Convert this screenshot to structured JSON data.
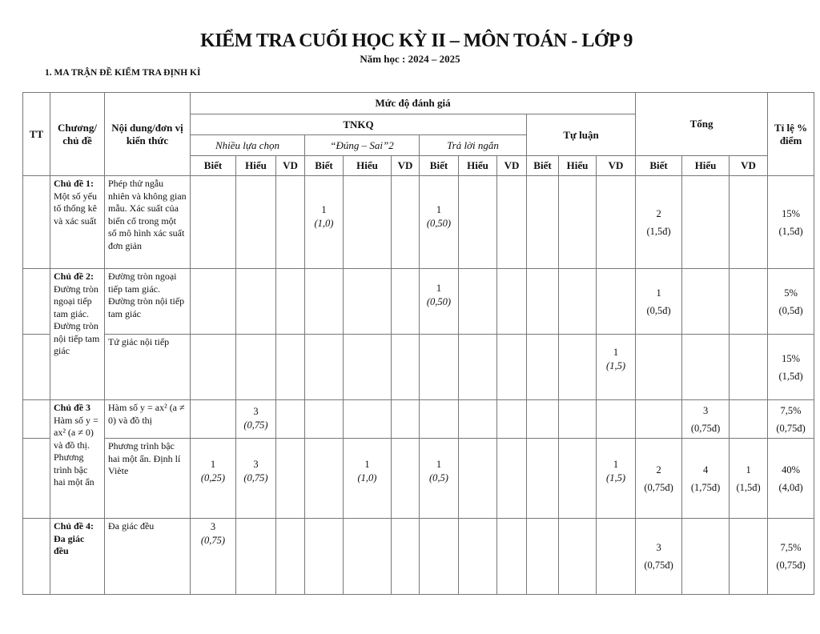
{
  "title": "KIỂM TRA CUỐI HỌC KỲ II – MÔN TOÁN  - LỚP 9",
  "school_year": "Năm học : 2024 – 2025",
  "section": "1. MA TRẬN ĐỀ KIỂM TRA ĐỊNH KÌ",
  "headers": {
    "tt": "TT",
    "chapter": "Chương/ chủ đề",
    "content": "Nội dung/đơn vị kiến thức",
    "level": "Mức độ đánh giá",
    "tnkq": "TNKQ",
    "essay": "Tự luận",
    "total": "Tổng",
    "ratio": "Tỉ lệ % điểm",
    "multiple_choice": "Nhiều lựa chọn",
    "true_false": "“Đúng – Sai”2",
    "short_answer": "Trả lời ngắn",
    "levels": [
      "Biết",
      "Hiểu",
      "VD",
      "Biết",
      "Hiểu",
      "VD",
      "Biết",
      "Hiểu",
      "VD",
      "Biết",
      "Hiểu",
      "VD",
      "Biết",
      "Hiểu",
      "VD"
    ]
  },
  "topics": [
    {
      "bold": "Chủ đề 1:",
      "text": "Một số yếu tố thống kê và xác suất"
    },
    {
      "bold": "Chủ đề 2:",
      "text": "Đường tròn ngoại tiếp tam giác. Đường tròn nội tiếp tam giác"
    },
    {
      "bold": "Chủ đề 3",
      "text": "Hàm số y = ax² (a ≠ 0) và đồ thị. Phương trình bậc hai một ẩn"
    },
    {
      "bold": "Chủ đề 4: Đa giác đều",
      "text": ""
    }
  ],
  "rows": [
    {
      "content": "Phép thử ngẫu nhiên và không gian mẫu. Xác suất của biến cố trong một số mô hình xác suất đơn giản",
      "cells": [
        [
          "",
          ""
        ],
        [
          "",
          ""
        ],
        [
          "",
          ""
        ],
        [
          "1",
          "(1,0)"
        ],
        [
          "",
          ""
        ],
        [
          "",
          ""
        ],
        [
          "1",
          "(0,50)"
        ],
        [
          "",
          ""
        ],
        [
          "",
          ""
        ],
        [
          "",
          ""
        ],
        [
          "",
          ""
        ],
        [
          "",
          ""
        ],
        [
          "2",
          "(1,5đ)"
        ],
        [
          "",
          ""
        ],
        [
          "",
          ""
        ]
      ],
      "ratio": [
        "15%",
        "(1,5đ)"
      ]
    },
    {
      "content": "Đường tròn ngoại tiếp tam giác. Đường tròn nội tiếp tam giác",
      "cells": [
        [
          "",
          ""
        ],
        [
          "",
          ""
        ],
        [
          "",
          ""
        ],
        [
          "",
          ""
        ],
        [
          "",
          ""
        ],
        [
          "",
          ""
        ],
        [
          "1",
          "(0,50)"
        ],
        [
          "",
          ""
        ],
        [
          "",
          ""
        ],
        [
          "",
          ""
        ],
        [
          "",
          ""
        ],
        [
          "",
          ""
        ],
        [
          "1",
          "(0,5đ)"
        ],
        [
          "",
          ""
        ],
        [
          "",
          ""
        ]
      ],
      "ratio": [
        "5%",
        "(0,5đ)"
      ]
    },
    {
      "content": "Tứ giác nội tiếp",
      "cells": [
        [
          "",
          ""
        ],
        [
          "",
          ""
        ],
        [
          "",
          ""
        ],
        [
          "",
          ""
        ],
        [
          "",
          ""
        ],
        [
          "",
          ""
        ],
        [
          "",
          ""
        ],
        [
          "",
          ""
        ],
        [
          "",
          ""
        ],
        [
          "",
          ""
        ],
        [
          "",
          ""
        ],
        [
          "1",
          "(1,5)"
        ],
        [
          "",
          ""
        ],
        [
          "",
          ""
        ],
        [
          "",
          ""
        ]
      ],
      "ratio": [
        "15%",
        "(1,5đ)"
      ]
    },
    {
      "content": "Hàm số y = ax² (a ≠ 0) và đồ thị",
      "cells": [
        [
          "",
          ""
        ],
        [
          "3",
          "(0,75)"
        ],
        [
          "",
          ""
        ],
        [
          "",
          ""
        ],
        [
          "",
          ""
        ],
        [
          "",
          ""
        ],
        [
          "",
          ""
        ],
        [
          "",
          ""
        ],
        [
          "",
          ""
        ],
        [
          "",
          ""
        ],
        [
          "",
          ""
        ],
        [
          "",
          ""
        ],
        [
          "",
          ""
        ],
        [
          "3",
          "(0,75đ)"
        ],
        [
          "",
          ""
        ]
      ],
      "ratio": [
        "7,5%",
        "(0,75đ)"
      ]
    },
    {
      "content": "Phương trình bậc hai một ẩn. Định lí Viète",
      "cells": [
        [
          "1",
          "(0,25)"
        ],
        [
          "3",
          "(0,75)"
        ],
        [
          "",
          ""
        ],
        [
          "",
          ""
        ],
        [
          "1",
          "(1,0)"
        ],
        [
          "",
          ""
        ],
        [
          "1",
          "(0,5)"
        ],
        [
          "",
          ""
        ],
        [
          "",
          ""
        ],
        [
          "",
          ""
        ],
        [
          "",
          ""
        ],
        [
          "1",
          "(1,5)"
        ],
        [
          "2",
          "(0,75đ)"
        ],
        [
          "4",
          "(1,75đ)"
        ],
        [
          "1",
          "(1,5đ)"
        ]
      ],
      "ratio": [
        "40%",
        "(4,0đ)"
      ]
    },
    {
      "content": "Đa giác đều",
      "cells": [
        [
          "3",
          "(0,75)"
        ],
        [
          "",
          ""
        ],
        [
          "",
          ""
        ],
        [
          "",
          ""
        ],
        [
          "",
          ""
        ],
        [
          "",
          ""
        ],
        [
          "",
          ""
        ],
        [
          "",
          ""
        ],
        [
          "",
          ""
        ],
        [
          "",
          ""
        ],
        [
          "",
          ""
        ],
        [
          "",
          ""
        ],
        [
          "3",
          "(0,75đ)"
        ],
        [
          "",
          ""
        ],
        [
          "",
          ""
        ]
      ],
      "ratio": [
        "7,5%",
        "(0,75đ)"
      ]
    }
  ]
}
